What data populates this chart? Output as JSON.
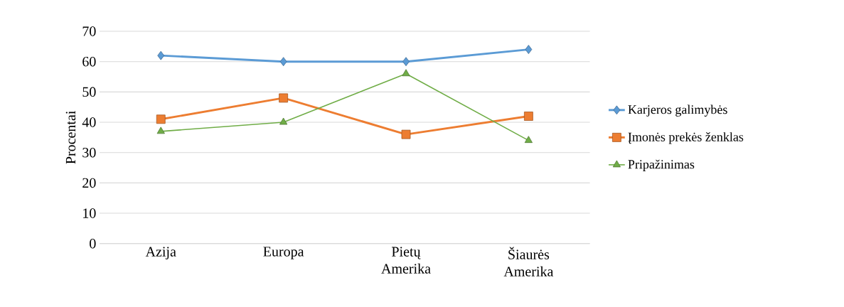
{
  "chart_data": {
    "type": "line",
    "ylabel": "Procentai",
    "categories": [
      "Azija",
      "Europa",
      "Pietų Amerika",
      "Šiaurės Amerika"
    ],
    "series": [
      {
        "name": "Karjeros galimybės",
        "color": "#5b9bd5",
        "marker": "diamond",
        "values": [
          62,
          60,
          60,
          64
        ]
      },
      {
        "name": "Įmonės prekės ženklas",
        "color": "#ed7d31",
        "marker": "square",
        "values": [
          41,
          48,
          36,
          42
        ]
      },
      {
        "name": "Pripažinimas",
        "color": "#70ad47",
        "marker": "triangle",
        "values": [
          37,
          40,
          56,
          34
        ]
      }
    ],
    "ylim": [
      0,
      70
    ],
    "yticks": [
      0,
      10,
      20,
      30,
      40,
      50,
      60,
      70
    ],
    "grid": "y",
    "legend": "right"
  }
}
